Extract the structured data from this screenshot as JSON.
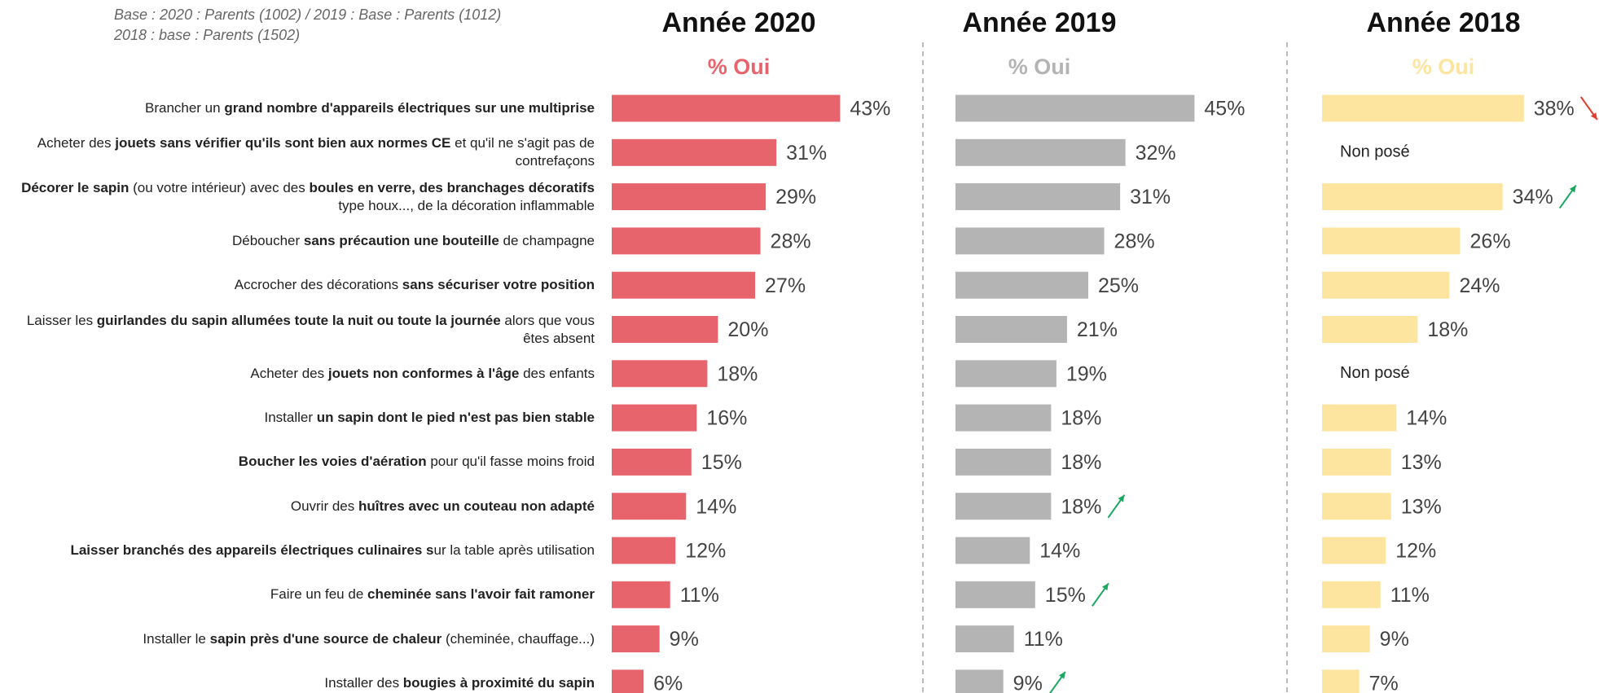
{
  "chart_data": {
    "type": "bar",
    "notes": [
      "Base : 2020 : Parents (1002) / 2019 : Base : Parents (1012)",
      "2018 : base : Parents (1502)"
    ],
    "categories": [
      [
        {
          "text": "Brancher un ",
          "bold": false
        },
        {
          "text": "grand nombre d'appareils électriques sur une multiprise",
          "bold": true
        }
      ],
      [
        {
          "text": "Acheter des ",
          "bold": false
        },
        {
          "text": "jouets sans vérifier qu'ils sont bien aux normes CE",
          "bold": true
        },
        {
          "text": " et qu'il ne s'agit pas de contrefaçons",
          "bold": false
        }
      ],
      [
        {
          "text": "Décorer le sapin",
          "bold": true
        },
        {
          "text": " (ou votre intérieur) avec des ",
          "bold": false
        },
        {
          "text": "boules en verre, des branchages décoratifs",
          "bold": true
        },
        {
          "text": " type houx..., de la décoration inflammable",
          "bold": false
        }
      ],
      [
        {
          "text": "Déboucher ",
          "bold": false
        },
        {
          "text": "sans précaution une bouteille",
          "bold": true
        },
        {
          "text": " de champagne",
          "bold": false
        }
      ],
      [
        {
          "text": "Accrocher des décorations ",
          "bold": false
        },
        {
          "text": "sans sécuriser votre position",
          "bold": true
        }
      ],
      [
        {
          "text": "Laisser les ",
          "bold": false
        },
        {
          "text": "guirlandes du sapin allumées toute la nuit ou toute la journée",
          "bold": true
        },
        {
          "text": " alors que vous êtes absent",
          "bold": false
        }
      ],
      [
        {
          "text": "Acheter des ",
          "bold": false
        },
        {
          "text": "jouets non conformes à l'âge",
          "bold": true
        },
        {
          "text": " des enfants",
          "bold": false
        }
      ],
      [
        {
          "text": "Installer ",
          "bold": false
        },
        {
          "text": "un sapin dont le pied n'est pas bien stable",
          "bold": true
        }
      ],
      [
        {
          "text": "Boucher les voies d'aération",
          "bold": true
        },
        {
          "text": " pour qu'il fasse moins froid",
          "bold": false
        }
      ],
      [
        {
          "text": "Ouvrir des ",
          "bold": false
        },
        {
          "text": "huîtres avec un couteau non adapté",
          "bold": true
        }
      ],
      [
        {
          "text": "Laisser branchés des appareils électriques culinaires s",
          "bold": true
        },
        {
          "text": "ur la table après utilisation",
          "bold": false
        }
      ],
      [
        {
          "text": "Faire un feu de ",
          "bold": false
        },
        {
          "text": "cheminée sans l'avoir fait ramoner",
          "bold": true
        }
      ],
      [
        {
          "text": "Installer le ",
          "bold": false
        },
        {
          "text": "sapin près d'une source de chaleur",
          "bold": true
        },
        {
          "text": " (cheminée, chauffage...)",
          "bold": false
        }
      ],
      [
        {
          "text": "Installer des ",
          "bold": false
        },
        {
          "text": "bougies à proximité du sapin",
          "bold": true
        }
      ]
    ],
    "series": [
      {
        "name": "Année 2020",
        "subtitle": "% Oui",
        "color": "#e8646c",
        "values": [
          43,
          31,
          29,
          28,
          27,
          20,
          18,
          16,
          15,
          14,
          12,
          11,
          9,
          6
        ],
        "value_labels": [
          "43%",
          "31%",
          "29%",
          "28%",
          "27%",
          "20%",
          "18%",
          "16%",
          "15%",
          "14%",
          "12%",
          "11%",
          "9%",
          "6%"
        ],
        "trend": [
          null,
          null,
          null,
          null,
          null,
          null,
          null,
          null,
          null,
          null,
          null,
          null,
          null,
          null
        ]
      },
      {
        "name": "Année 2019",
        "subtitle": "% Oui",
        "color": "#b4b4b4",
        "values": [
          45,
          32,
          31,
          28,
          25,
          21,
          19,
          18,
          18,
          18,
          14,
          15,
          11,
          9
        ],
        "value_labels": [
          "45%",
          "32%",
          "31%",
          "28%",
          "25%",
          "21%",
          "19%",
          "18%",
          "18%",
          "18%",
          "14%",
          "15%",
          "11%",
          "9%"
        ],
        "trend": [
          null,
          null,
          null,
          null,
          null,
          null,
          null,
          null,
          null,
          "up",
          null,
          "up",
          null,
          "up"
        ]
      },
      {
        "name": "Année 2018",
        "subtitle": "% Oui",
        "color": "#fde59f",
        "values": [
          38,
          null,
          34,
          26,
          24,
          18,
          null,
          14,
          13,
          13,
          12,
          11,
          9,
          7
        ],
        "value_labels": [
          "38%",
          "Non posé",
          "34%",
          "26%",
          "24%",
          "18%",
          "Non posé",
          "14%",
          "13%",
          "13%",
          "12%",
          "11%",
          "9%",
          "7%"
        ],
        "trend": [
          "down",
          null,
          "up",
          null,
          null,
          null,
          null,
          null,
          null,
          null,
          null,
          null,
          null,
          null
        ]
      }
    ]
  }
}
